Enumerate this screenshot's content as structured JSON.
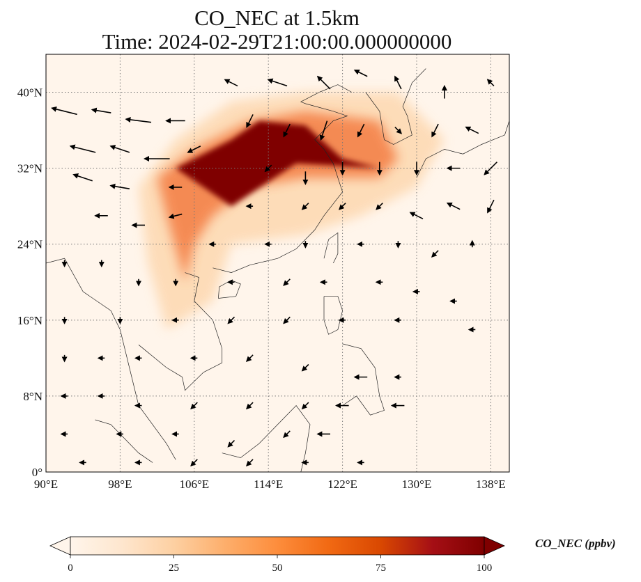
{
  "title": {
    "line1": "CO_NEC at 1.5km",
    "line2": "Time: 2024-02-29T21:00:00.000000000"
  },
  "map": {
    "lon_range": [
      90,
      140
    ],
    "lat_range": [
      0,
      44
    ],
    "lon_ticks": [
      {
        "value": 90,
        "label": "90°E"
      },
      {
        "value": 98,
        "label": "98°E"
      },
      {
        "value": 106,
        "label": "106°E"
      },
      {
        "value": 114,
        "label": "114°E"
      },
      {
        "value": 122,
        "label": "122°E"
      },
      {
        "value": 130,
        "label": "130°E"
      },
      {
        "value": 138,
        "label": "138°E"
      }
    ],
    "lat_ticks": [
      {
        "value": 0,
        "label": "0°"
      },
      {
        "value": 8,
        "label": "8°N"
      },
      {
        "value": 16,
        "label": "16°N"
      },
      {
        "value": 24,
        "label": "24°N"
      },
      {
        "value": 32,
        "label": "32°N"
      },
      {
        "value": 40,
        "label": "40°N"
      }
    ],
    "gridlines": true,
    "field_colors": {
      "low": "#fff5eb",
      "mid": "#fdae6b",
      "high": "#7f0000"
    },
    "plume_high": [
      [
        113,
        37
      ],
      [
        118,
        36.5
      ],
      [
        122,
        33
      ],
      [
        126,
        32
      ],
      [
        117,
        32.5
      ],
      [
        110,
        28
      ],
      [
        104,
        32
      ],
      [
        110,
        35
      ]
    ],
    "plume_mid": [
      [
        102,
        31
      ],
      [
        106,
        34
      ],
      [
        112,
        37
      ],
      [
        118,
        38
      ],
      [
        126,
        37
      ],
      [
        128,
        33
      ],
      [
        126,
        31
      ],
      [
        118,
        31
      ],
      [
        112,
        30
      ],
      [
        108,
        27
      ],
      [
        106,
        24
      ],
      [
        105,
        20
      ],
      [
        103,
        27
      ]
    ],
    "plume_low": [
      [
        100,
        30
      ],
      [
        104,
        35
      ],
      [
        110,
        39
      ],
      [
        118,
        40
      ],
      [
        128,
        40
      ],
      [
        133,
        35
      ],
      [
        130,
        30
      ],
      [
        124,
        27
      ],
      [
        118,
        25
      ],
      [
        110,
        24
      ],
      [
        108,
        18
      ],
      [
        103,
        15
      ],
      [
        101,
        22
      ]
    ]
  },
  "colorbar": {
    "label": "CO_NEC (ppbv)",
    "min": 0,
    "max": 100,
    "extend": "both",
    "ticks": [
      {
        "value": 0,
        "label": "0"
      },
      {
        "value": 25,
        "label": "25"
      },
      {
        "value": 50,
        "label": "50"
      },
      {
        "value": 75,
        "label": "75"
      },
      {
        "value": 100,
        "label": "100"
      }
    ],
    "colors": [
      "#fff5eb",
      "#fee6ce",
      "#fdd0a2",
      "#fdae6b",
      "#fd8d3c",
      "#f16913",
      "#d94801",
      "#a50f15",
      "#7f0000"
    ]
  },
  "wind_arrows": [
    {
      "lon": 92,
      "lat": 38,
      "u": -4,
      "v": 1
    },
    {
      "lon": 96,
      "lat": 38,
      "u": -3,
      "v": 0.5
    },
    {
      "lon": 100,
      "lat": 37,
      "u": -4,
      "v": 0.5
    },
    {
      "lon": 104,
      "lat": 37,
      "u": -3,
      "v": 0
    },
    {
      "lon": 94,
      "lat": 34,
      "u": -4,
      "v": 1
    },
    {
      "lon": 98,
      "lat": 34,
      "u": -3,
      "v": 1
    },
    {
      "lon": 102,
      "lat": 33,
      "u": -4,
      "v": 0
    },
    {
      "lon": 106,
      "lat": 34,
      "u": -2,
      "v": -1
    },
    {
      "lon": 94,
      "lat": 31,
      "u": -3,
      "v": 1
    },
    {
      "lon": 98,
      "lat": 30,
      "u": -3,
      "v": 0.5
    },
    {
      "lon": 104,
      "lat": 30,
      "u": -2,
      "v": 0
    },
    {
      "lon": 96,
      "lat": 27,
      "u": -2,
      "v": 0
    },
    {
      "lon": 100,
      "lat": 26,
      "u": -2,
      "v": 0
    },
    {
      "lon": 104,
      "lat": 27,
      "u": -2,
      "v": -0.5
    },
    {
      "lon": 110,
      "lat": 41,
      "u": -2,
      "v": 1
    },
    {
      "lon": 115,
      "lat": 41,
      "u": -3,
      "v": 1
    },
    {
      "lon": 120,
      "lat": 41,
      "u": -2,
      "v": 2
    },
    {
      "lon": 124,
      "lat": 42,
      "u": -2,
      "v": 1
    },
    {
      "lon": 128,
      "lat": 41,
      "u": -1,
      "v": 2
    },
    {
      "lon": 133,
      "lat": 40,
      "u": 0,
      "v": 2
    },
    {
      "lon": 138,
      "lat": 41,
      "u": -1,
      "v": 1
    },
    {
      "lon": 112,
      "lat": 37,
      "u": -1,
      "v": -2
    },
    {
      "lon": 116,
      "lat": 36,
      "u": -1,
      "v": -2
    },
    {
      "lon": 120,
      "lat": 36,
      "u": -1,
      "v": -3
    },
    {
      "lon": 124,
      "lat": 36,
      "u": -1,
      "v": -2
    },
    {
      "lon": 128,
      "lat": 36,
      "u": 1,
      "v": -1
    },
    {
      "lon": 132,
      "lat": 36,
      "u": -1,
      "v": -2
    },
    {
      "lon": 136,
      "lat": 36,
      "u": -2,
      "v": 1
    },
    {
      "lon": 114,
      "lat": 32,
      "u": -1,
      "v": -1
    },
    {
      "lon": 118,
      "lat": 31,
      "u": 0,
      "v": -2
    },
    {
      "lon": 122,
      "lat": 32,
      "u": 0,
      "v": -2
    },
    {
      "lon": 126,
      "lat": 32,
      "u": 0,
      "v": -2
    },
    {
      "lon": 130,
      "lat": 32,
      "u": 0,
      "v": -2
    },
    {
      "lon": 134,
      "lat": 32,
      "u": -2,
      "v": 0
    },
    {
      "lon": 138,
      "lat": 32,
      "u": -2,
      "v": -2
    },
    {
      "lon": 112,
      "lat": 28,
      "u": -1,
      "v": 0
    },
    {
      "lon": 118,
      "lat": 28,
      "u": -1,
      "v": -1
    },
    {
      "lon": 122,
      "lat": 28,
      "u": -1,
      "v": -1
    },
    {
      "lon": 126,
      "lat": 28,
      "u": -1,
      "v": -1
    },
    {
      "lon": 130,
      "lat": 27,
      "u": -2,
      "v": 1
    },
    {
      "lon": 134,
      "lat": 28,
      "u": -2,
      "v": 1
    },
    {
      "lon": 138,
      "lat": 28,
      "u": -1,
      "v": -2
    },
    {
      "lon": 108,
      "lat": 24,
      "u": -1,
      "v": 0
    },
    {
      "lon": 114,
      "lat": 24,
      "u": -1,
      "v": 0
    },
    {
      "lon": 118,
      "lat": 24,
      "u": 0,
      "v": -1
    },
    {
      "lon": 124,
      "lat": 24,
      "u": -1,
      "v": 0
    },
    {
      "lon": 128,
      "lat": 24,
      "u": 0,
      "v": -1
    },
    {
      "lon": 132,
      "lat": 23,
      "u": -1,
      "v": -1
    },
    {
      "lon": 136,
      "lat": 24,
      "u": 0,
      "v": 1
    },
    {
      "lon": 92,
      "lat": 22,
      "u": 0,
      "v": -1
    },
    {
      "lon": 96,
      "lat": 22,
      "u": 0,
      "v": -1
    },
    {
      "lon": 100,
      "lat": 20,
      "u": 0,
      "v": -1
    },
    {
      "lon": 104,
      "lat": 20,
      "u": 0,
      "v": -1
    },
    {
      "lon": 110,
      "lat": 20,
      "u": -1,
      "v": 0
    },
    {
      "lon": 116,
      "lat": 20,
      "u": -1,
      "v": -1
    },
    {
      "lon": 120,
      "lat": 20,
      "u": -1,
      "v": 0
    },
    {
      "lon": 126,
      "lat": 20,
      "u": -1,
      "v": 0
    },
    {
      "lon": 130,
      "lat": 19,
      "u": -1,
      "v": 0
    },
    {
      "lon": 134,
      "lat": 18,
      "u": -1,
      "v": 0
    },
    {
      "lon": 92,
      "lat": 16,
      "u": 0,
      "v": -1
    },
    {
      "lon": 98,
      "lat": 16,
      "u": 0,
      "v": -1
    },
    {
      "lon": 104,
      "lat": 16,
      "u": -1,
      "v": 0
    },
    {
      "lon": 110,
      "lat": 16,
      "u": -1,
      "v": -1
    },
    {
      "lon": 116,
      "lat": 16,
      "u": -1,
      "v": -1
    },
    {
      "lon": 122,
      "lat": 16,
      "u": -1,
      "v": 0
    },
    {
      "lon": 128,
      "lat": 16,
      "u": -1,
      "v": 0
    },
    {
      "lon": 136,
      "lat": 15,
      "u": -1,
      "v": 0
    },
    {
      "lon": 92,
      "lat": 12,
      "u": 0,
      "v": -1
    },
    {
      "lon": 96,
      "lat": 12,
      "u": -1,
      "v": 0
    },
    {
      "lon": 100,
      "lat": 12,
      "u": -1,
      "v": 0
    },
    {
      "lon": 106,
      "lat": 12,
      "u": -1,
      "v": 0
    },
    {
      "lon": 112,
      "lat": 12,
      "u": -1,
      "v": -1
    },
    {
      "lon": 118,
      "lat": 11,
      "u": -1,
      "v": -1
    },
    {
      "lon": 124,
      "lat": 10,
      "u": -2,
      "v": 0
    },
    {
      "lon": 128,
      "lat": 10,
      "u": -1,
      "v": 0
    },
    {
      "lon": 92,
      "lat": 8,
      "u": -1,
      "v": 0
    },
    {
      "lon": 96,
      "lat": 8,
      "u": -1,
      "v": 0
    },
    {
      "lon": 100,
      "lat": 7,
      "u": -1,
      "v": 0
    },
    {
      "lon": 106,
      "lat": 7,
      "u": -1,
      "v": -1
    },
    {
      "lon": 112,
      "lat": 7,
      "u": -1,
      "v": -1
    },
    {
      "lon": 118,
      "lat": 7,
      "u": -1,
      "v": -1
    },
    {
      "lon": 122,
      "lat": 7,
      "u": -2,
      "v": 0
    },
    {
      "lon": 128,
      "lat": 7,
      "u": -2,
      "v": 0
    },
    {
      "lon": 92,
      "lat": 4,
      "u": -1,
      "v": 0
    },
    {
      "lon": 98,
      "lat": 4,
      "u": -1,
      "v": 0
    },
    {
      "lon": 104,
      "lat": 4,
      "u": -1,
      "v": 0
    },
    {
      "lon": 110,
      "lat": 3,
      "u": -1,
      "v": -1
    },
    {
      "lon": 116,
      "lat": 4,
      "u": -1,
      "v": -1
    },
    {
      "lon": 120,
      "lat": 4,
      "u": -2,
      "v": 0
    },
    {
      "lon": 94,
      "lat": 1,
      "u": -1,
      "v": 0
    },
    {
      "lon": 100,
      "lat": 1,
      "u": -1,
      "v": 0
    },
    {
      "lon": 106,
      "lat": 1,
      "u": -1,
      "v": -1
    },
    {
      "lon": 112,
      "lat": 1,
      "u": -1,
      "v": -1
    },
    {
      "lon": 118,
      "lat": 1,
      "u": -1,
      "v": 0
    },
    {
      "lon": 124,
      "lat": 1,
      "u": -1,
      "v": 0
    }
  ]
}
